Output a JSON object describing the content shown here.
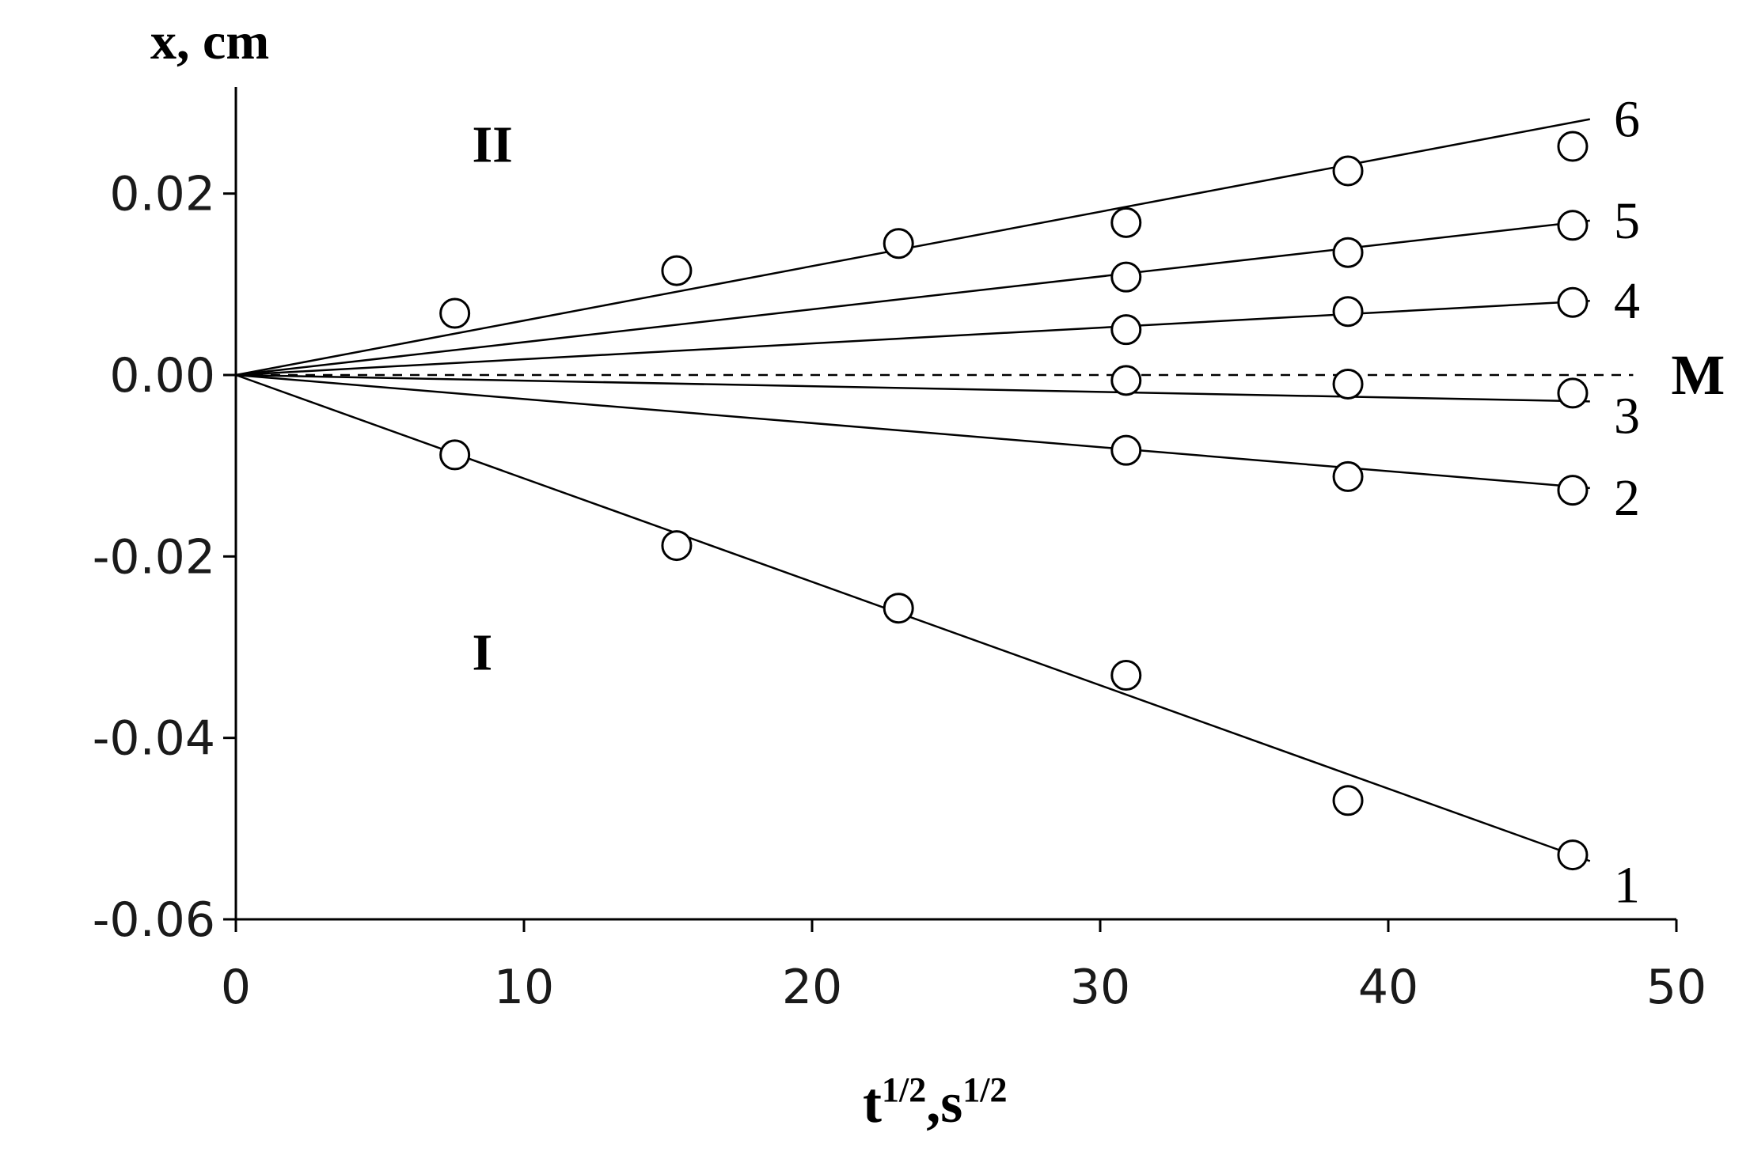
{
  "chart_data": {
    "type": "line",
    "title": "",
    "ylabel": "x, cm",
    "xlabel": {
      "base1": "t",
      "sup1": "1/2",
      "sep": ",",
      "base2": "s",
      "sup2": "1/2"
    },
    "xlim": [
      0,
      50
    ],
    "ylim": [
      -0.06,
      0.03
    ],
    "xticks": [
      0,
      10,
      20,
      30,
      40,
      50
    ],
    "xtick_labels": [
      "0",
      "10",
      "20",
      "30",
      "40",
      "50"
    ],
    "yticks": [
      0.02,
      0.0,
      -0.02,
      -0.04,
      -0.06
    ],
    "ytick_labels": [
      "0.02",
      "0.00",
      "-0.02",
      "-0.04",
      "-0.06"
    ],
    "grid": false,
    "region_labels": [
      {
        "text": "II",
        "x": 8.2,
        "y": 0.0235
      },
      {
        "text": "I",
        "x": 8.2,
        "y": -0.0325
      }
    ],
    "reference_line": {
      "name": "M",
      "y": 0.0,
      "style": "dashed",
      "x_end": 48.5
    },
    "series": [
      {
        "name": "1",
        "fit_slope": -0.00114,
        "fit_x_end": 46.4,
        "points": [
          {
            "x": 7.6,
            "y": -0.0088
          },
          {
            "x": 15.3,
            "y": -0.0188
          },
          {
            "x": 23.0,
            "y": -0.0257
          },
          {
            "x": 30.9,
            "y": -0.0331
          },
          {
            "x": 38.6,
            "y": -0.0469
          },
          {
            "x": 46.4,
            "y": -0.0529
          }
        ]
      },
      {
        "name": "2",
        "fit_slope": -0.000265,
        "fit_x_end": 46.4,
        "points": [
          {
            "x": 30.9,
            "y": -0.0083
          },
          {
            "x": 38.6,
            "y": -0.0112
          },
          {
            "x": 46.4,
            "y": -0.0127
          }
        ]
      },
      {
        "name": "3",
        "fit_slope": -6.2e-05,
        "fit_x_end": 46.4,
        "points": [
          {
            "x": 30.9,
            "y": -0.0006
          },
          {
            "x": 38.6,
            "y": -0.001
          },
          {
            "x": 46.4,
            "y": -0.002
          }
        ]
      },
      {
        "name": "4",
        "fit_slope": 0.000174,
        "fit_x_end": 46.4,
        "points": [
          {
            "x": 30.9,
            "y": 0.005
          },
          {
            "x": 38.6,
            "y": 0.007
          },
          {
            "x": 46.4,
            "y": 0.008
          }
        ]
      },
      {
        "name": "5",
        "fit_slope": 0.000362,
        "fit_x_end": 46.4,
        "points": [
          {
            "x": 30.9,
            "y": 0.0108
          },
          {
            "x": 38.6,
            "y": 0.0135
          },
          {
            "x": 46.4,
            "y": 0.0165
          }
        ]
      },
      {
        "name": "6",
        "fit_slope": 0.0006,
        "fit_x_end": 46.4,
        "points": [
          {
            "x": 7.6,
            "y": 0.0068
          },
          {
            "x": 15.3,
            "y": 0.0115
          },
          {
            "x": 23.0,
            "y": 0.0145
          },
          {
            "x": 30.9,
            "y": 0.0168
          },
          {
            "x": 38.6,
            "y": 0.0225
          },
          {
            "x": 46.4,
            "y": 0.0252
          }
        ]
      }
    ]
  }
}
